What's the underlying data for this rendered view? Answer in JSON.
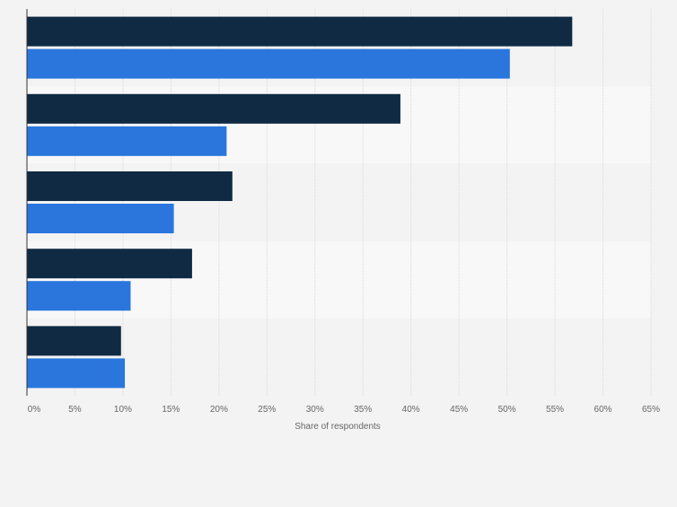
{
  "chart_data": {
    "type": "bar",
    "orientation": "horizontal",
    "xlabel": "Share of respondents",
    "ylabel": "",
    "xlim": [
      0,
      65
    ],
    "x_ticks": [
      "0%",
      "5%",
      "10%",
      "15%",
      "20%",
      "25%",
      "30%",
      "35%",
      "40%",
      "45%",
      "50%",
      "55%",
      "60%",
      "65%"
    ],
    "grid": true,
    "legend": "none",
    "categories": [
      "",
      "",
      "",
      "",
      ""
    ],
    "series": [
      {
        "color": "#102a43",
        "values": [
          56.8,
          38.9,
          21.4,
          17.2,
          9.8
        ]
      },
      {
        "color": "#2a76dd",
        "values": [
          50.3,
          20.8,
          15.3,
          10.8,
          10.2
        ]
      }
    ]
  }
}
